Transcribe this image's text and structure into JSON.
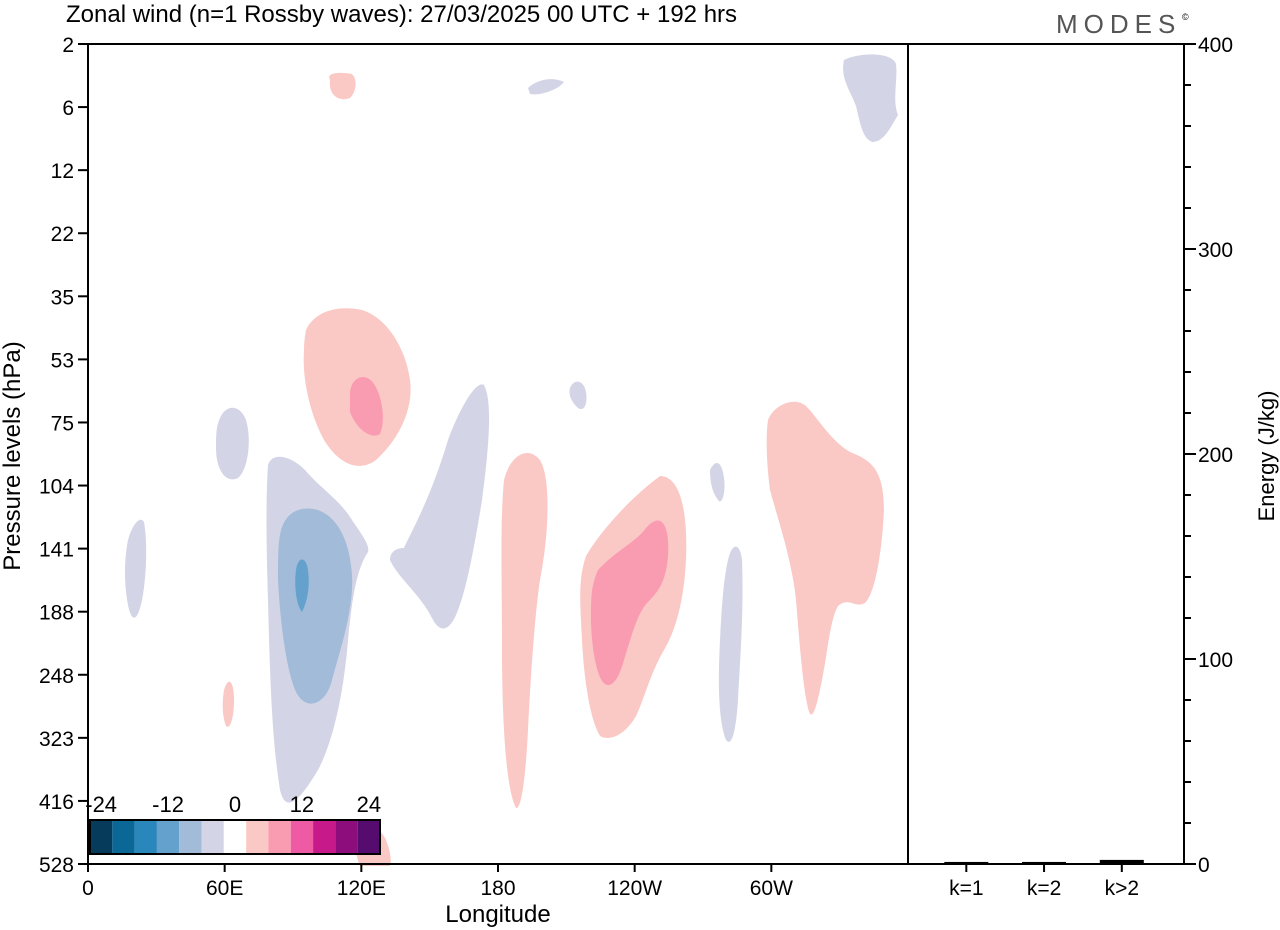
{
  "chart_data": {
    "type": "heatmap",
    "title": "Zonal wind (n=1 Rossby waves):  27/03/2025  00 UTC  + 192 hrs",
    "logo": "MODES",
    "logo_mark": "©",
    "xlabel": "Longitude",
    "ylabel": "Pressure levels (hPa)",
    "y2label": "Energy (J/kg)",
    "x_ticks": [
      "0",
      "60E",
      "120E",
      "180",
      "120W",
      "60W"
    ],
    "x_tick_values": [
      0,
      60,
      120,
      180,
      240,
      300
    ],
    "xlim": [
      0,
      360
    ],
    "pressure_levels": [
      "2",
      "6",
      "12",
      "22",
      "35",
      "53",
      "75",
      "104",
      "141",
      "188",
      "248",
      "323",
      "416",
      "528"
    ],
    "energy_ticks": [
      "0",
      "100",
      "200",
      "300",
      "400"
    ],
    "energy_ylim": [
      0,
      400
    ],
    "energy_categories": [
      "k=1",
      "k=2",
      "k>2"
    ],
    "energy_values": [
      1,
      1,
      2
    ],
    "colorbar": {
      "tick_labels": [
        "-24",
        "-12",
        "0",
        "12",
        "24"
      ],
      "colors": [
        "#063b5c",
        "#0b6796",
        "#2a87bc",
        "#64a1cd",
        "#a2bbd9",
        "#d3d5e6",
        "#ffffff",
        "#fbc9c5",
        "#f99cb2",
        "#ee5aa3",
        "#c8198b",
        "#8e0d7c",
        "#560b6e"
      ]
    },
    "contour_fill_colors": {
      "neg_light": "#d3d5e6",
      "neg_medium": "#a2bbd9",
      "neg_strong": "#64a1cd",
      "pos_light": "#fbc9c5",
      "pos_medium": "#f99cb2"
    }
  }
}
